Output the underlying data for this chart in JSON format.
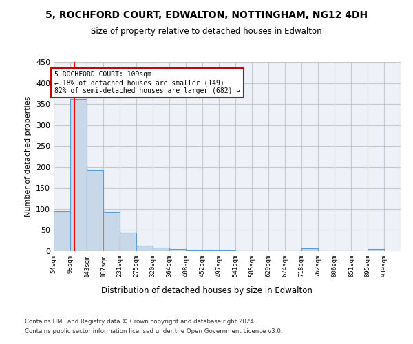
{
  "title": "5, ROCHFORD COURT, EDWALTON, NOTTINGHAM, NG12 4DH",
  "subtitle": "Size of property relative to detached houses in Edwalton",
  "xlabel": "Distribution of detached houses by size in Edwalton",
  "ylabel": "Number of detached properties",
  "footer_line1": "Contains HM Land Registry data © Crown copyright and database right 2024.",
  "footer_line2": "Contains public sector information licensed under the Open Government Licence v3.0.",
  "bin_edges": [
    54,
    98,
    143,
    187,
    231,
    275,
    320,
    364,
    408,
    452,
    497,
    541,
    585,
    629,
    674,
    718,
    762,
    806,
    851,
    895,
    939
  ],
  "bar_heights": [
    95,
    362,
    193,
    93,
    45,
    13,
    8,
    5,
    2,
    1,
    1,
    0,
    0,
    0,
    0,
    6,
    0,
    0,
    0,
    5
  ],
  "bar_color": "#c8d8e8",
  "bar_edge_color": "#5b9bd5",
  "grid_color": "#c8c8c8",
  "bg_color": "#eef2f8",
  "red_line_x": 109,
  "annotation_text": "5 ROCHFORD COURT: 109sqm\n← 18% of detached houses are smaller (149)\n82% of semi-detached houses are larger (682) →",
  "annotation_box_color": "#ffffff",
  "annotation_border_color": "#cc0000",
  "ylim": [
    0,
    450
  ],
  "yticks": [
    0,
    50,
    100,
    150,
    200,
    250,
    300,
    350,
    400,
    450
  ]
}
